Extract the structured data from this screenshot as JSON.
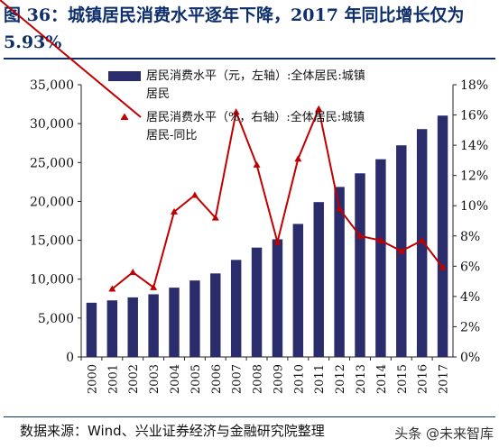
{
  "header": {
    "title": "图 36：城镇居民消费水平逐年下降，2017 年同比增长仅为 5.93%"
  },
  "footer": {
    "source": "数据来源：Wind、兴业证券经济与金融研究院整理",
    "watermark": "头条 @未来智库"
  },
  "colors": {
    "bar": "#2b2c6b",
    "line": "#c00000",
    "title": "#0e2f6b"
  },
  "chart_data": {
    "type": "bar",
    "categories": [
      "2000",
      "2001",
      "2002",
      "2003",
      "2004",
      "2005",
      "2006",
      "2007",
      "2008",
      "2009",
      "2010",
      "2011",
      "2012",
      "2013",
      "2014",
      "2015",
      "2016",
      "2017"
    ],
    "series": [
      {
        "name": "居民消费水平（元，左轴）:全体居民:城镇居民",
        "type": "bar",
        "axis": "left",
        "values": [
          6972,
          7272,
          7662,
          8060,
          8912,
          9832,
          10739,
          12480,
          14061,
          15127,
          17104,
          19912,
          21861,
          23609,
          25424,
          27210,
          29295,
          31032
        ]
      },
      {
        "name": "居民消费水平（%，右轴）:全体居民:城镇居民-同比",
        "type": "line",
        "axis": "right",
        "values": [
          null,
          4.5,
          5.6,
          4.6,
          9.6,
          10.7,
          9.2,
          16.2,
          12.7,
          7.6,
          13.1,
          16.4,
          9.8,
          8.0,
          7.7,
          7.0,
          7.7,
          5.93
        ]
      }
    ],
    "y_left": {
      "min": 0,
      "max": 35000,
      "ticks": [
        "0",
        "5,000",
        "10,000",
        "15,000",
        "20,000",
        "25,000",
        "30,000",
        "35,000"
      ]
    },
    "y_right": {
      "min": 0,
      "max": 18,
      "ticks": [
        "0%",
        "2%",
        "4%",
        "6%",
        "8%",
        "10%",
        "12%",
        "14%",
        "16%",
        "18%"
      ]
    },
    "grid": false,
    "legend_position": "top-left"
  }
}
